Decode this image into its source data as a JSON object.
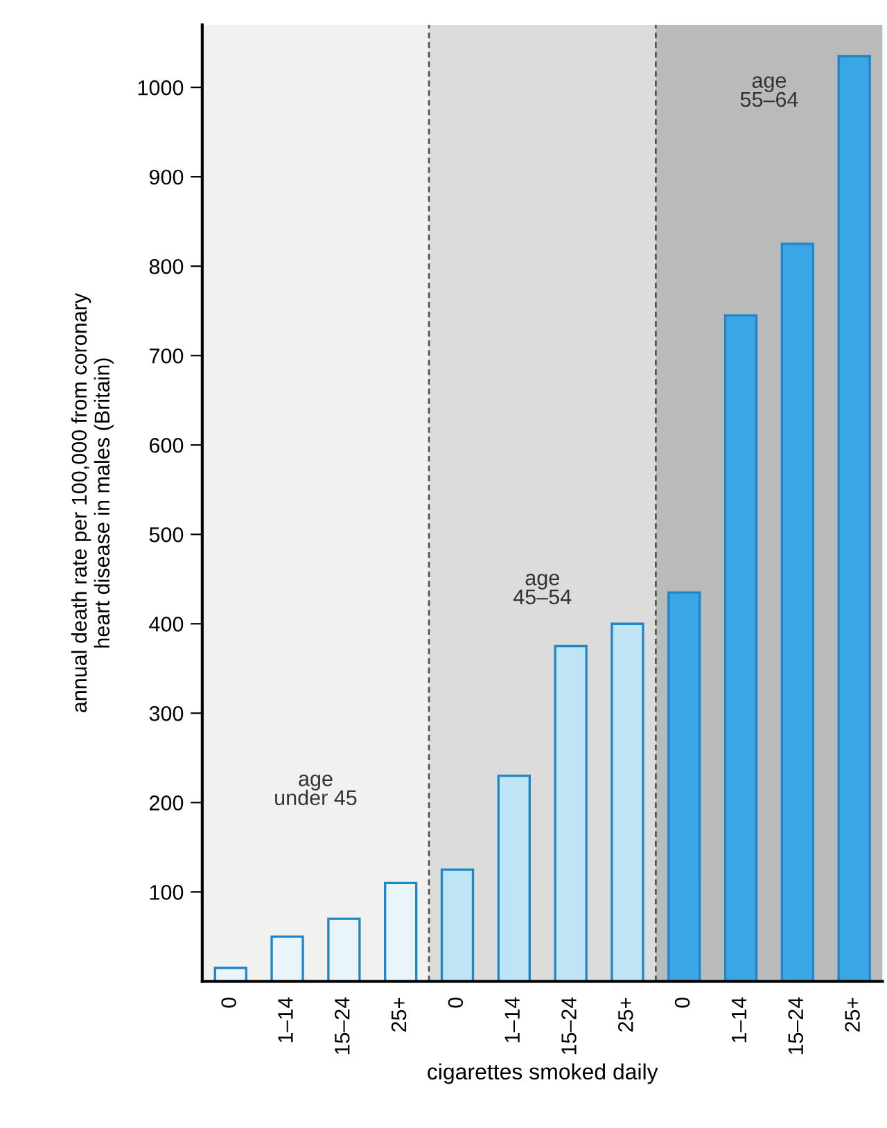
{
  "chart_data": {
    "type": "bar",
    "xlabel": "cigarettes smoked daily",
    "ylabel": "annual death rate per 100,000 from coronary\nheart disease in males (Britain)",
    "categories": [
      "0",
      "1–14",
      "15–24",
      "25+",
      "0",
      "1–14",
      "15–24",
      "25+",
      "0",
      "1–14",
      "15–24",
      "25+"
    ],
    "values": [
      15,
      50,
      70,
      110,
      125,
      230,
      375,
      400,
      435,
      745,
      825,
      1035
    ],
    "colors": [
      "#eaf5fb",
      "#eaf5fb",
      "#eaf5fb",
      "#eaf5fb",
      "#bfe4f6",
      "#bfe4f6",
      "#bfe4f6",
      "#bfe4f6",
      "#3aa6e6",
      "#3aa6e6",
      "#3aa6e6",
      "#3aa6e6"
    ],
    "ylim": [
      0,
      1070
    ],
    "yticks": [
      100,
      200,
      300,
      400,
      500,
      600,
      700,
      800,
      900,
      1000
    ],
    "annotations": [
      "age\nunder 45",
      "age\n45–54",
      "age\n55–64"
    ],
    "grid": false,
    "legend": false
  }
}
